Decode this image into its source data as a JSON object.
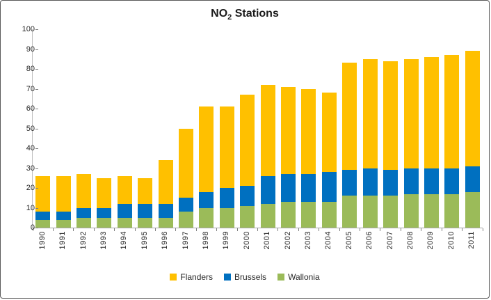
{
  "chart_data": {
    "type": "bar",
    "stacked": true,
    "title_parts": {
      "prefix": "NO",
      "sub": "2",
      "suffix": " Stations"
    },
    "title_text": "NO2 Stations",
    "categories": [
      "1990",
      "1991",
      "1992",
      "1993",
      "1994",
      "1995",
      "1996",
      "1997",
      "1998",
      "1999",
      "2000",
      "2001",
      "2002",
      "2003",
      "2004",
      "2005",
      "2006",
      "2007",
      "2008",
      "2009",
      "2010",
      "2011"
    ],
    "series": [
      {
        "name": "Wallonia",
        "color": "#9BBB59",
        "values": [
          4,
          4,
          5,
          5,
          5,
          5,
          5,
          8,
          10,
          10,
          11,
          12,
          13,
          13,
          13,
          16,
          16,
          16,
          17,
          17,
          17,
          18
        ]
      },
      {
        "name": "Brussels",
        "color": "#0070C0",
        "values": [
          4,
          4,
          5,
          5,
          7,
          7,
          7,
          7,
          8,
          10,
          10,
          14,
          14,
          14,
          15,
          13,
          14,
          13,
          13,
          13,
          13,
          13
        ]
      },
      {
        "name": "Flanders",
        "color": "#FFC000",
        "values": [
          18,
          18,
          17,
          15,
          14,
          13,
          22,
          35,
          43,
          41,
          46,
          46,
          44,
          43,
          40,
          54,
          55,
          55,
          55,
          56,
          57,
          58
        ]
      }
    ],
    "totals": [
      26,
      26,
      27,
      25,
      26,
      25,
      34,
      50,
      61,
      61,
      67,
      72,
      71,
      70,
      68,
      83,
      85,
      84,
      85,
      86,
      87,
      89
    ],
    "ylim": [
      0,
      100
    ],
    "yticks": [
      0,
      10,
      20,
      30,
      40,
      50,
      60,
      70,
      80,
      90,
      100
    ],
    "grid": false,
    "legend_position": "bottom",
    "legend": [
      {
        "label": "Flanders",
        "color": "#FFC000"
      },
      {
        "label": "Brussels",
        "color": "#0070C0"
      },
      {
        "label": "Wallonia",
        "color": "#9BBB59"
      }
    ]
  },
  "style_colors": {
    "axis_line": "#BFBFBF",
    "tick_mark": "#808080",
    "text": "#262626",
    "frame_border": "#595959"
  }
}
